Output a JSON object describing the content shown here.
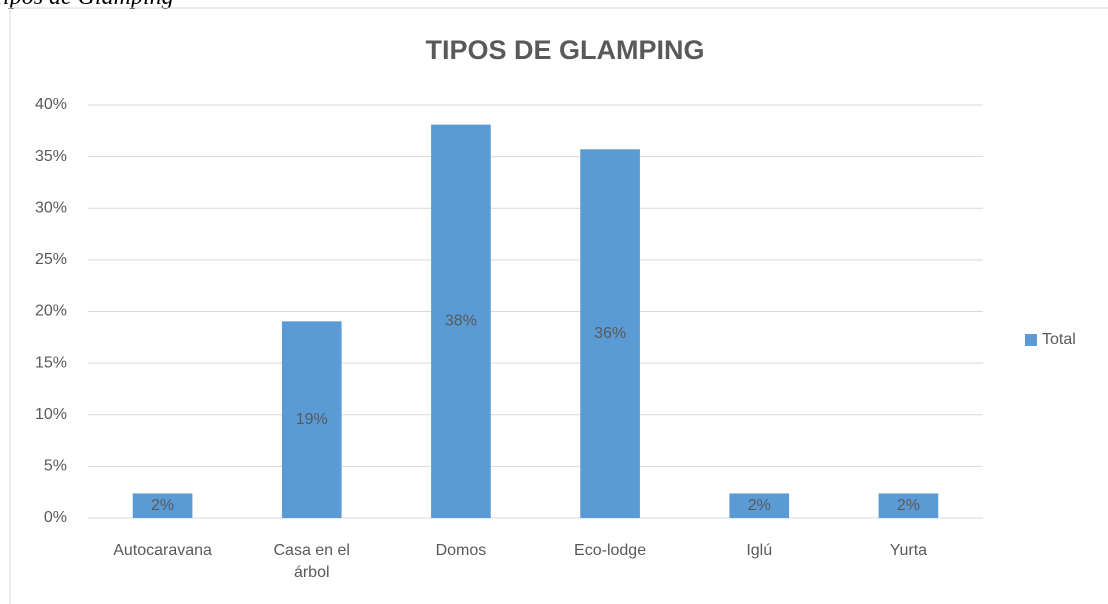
{
  "caption": "Tipos de Glamping",
  "chart_data": {
    "type": "bar",
    "title": "TIPOS DE GLAMPING",
    "categories": [
      "Autocaravana",
      "Casa en el árbol",
      "Domos",
      "Eco-lodge",
      "Iglú",
      "Yurta"
    ],
    "series": [
      {
        "name": "Total",
        "color": "#5b9bd5",
        "values": [
          2.38,
          19.05,
          38.1,
          35.71,
          2.38,
          2.38
        ],
        "value_labels": [
          "2%",
          "19%",
          "38%",
          "36%",
          "2%",
          "2%"
        ]
      }
    ],
    "ylim": [
      0,
      40
    ],
    "yticks": [
      {
        "value": 0,
        "label": "0%"
      },
      {
        "value": 5,
        "label": "5%"
      },
      {
        "value": 10,
        "label": "10%"
      },
      {
        "value": 15,
        "label": "15%"
      },
      {
        "value": 20,
        "label": "20%"
      },
      {
        "value": 25,
        "label": "25%"
      },
      {
        "value": 30,
        "label": "30%"
      },
      {
        "value": 35,
        "label": "35%"
      },
      {
        "value": 40,
        "label": "40%"
      }
    ],
    "grid": true,
    "legend": "right"
  }
}
